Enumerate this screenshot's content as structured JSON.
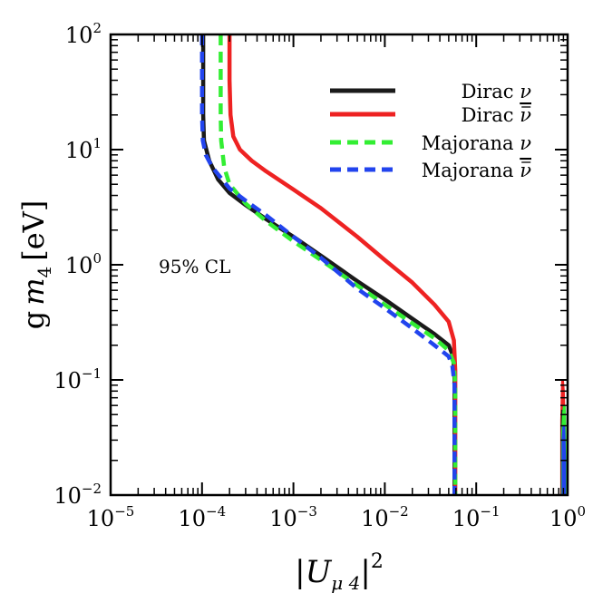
{
  "chart_data": {
    "type": "line",
    "title": "",
    "xlabel": "|U_{μ4}|^2",
    "xlabel_parts": {
      "bar": "|",
      "var": "U",
      "sub": "μ 4",
      "close": "|",
      "sup": "2"
    },
    "ylabel": "g m_4 [eV]",
    "ylabel_parts": {
      "g": "g",
      "var": "m",
      "sub": "4",
      "unit": "[eV]"
    },
    "xscale": "log",
    "yscale": "log",
    "xlim_exp": [
      -5,
      0
    ],
    "ylim_exp": [
      -2,
      2
    ],
    "x_ticks": [
      {
        "base": "10",
        "exp": "−5",
        "e": -5
      },
      {
        "base": "10",
        "exp": "−4",
        "e": -4
      },
      {
        "base": "10",
        "exp": "−3",
        "e": -3
      },
      {
        "base": "10",
        "exp": "−2",
        "e": -2
      },
      {
        "base": "10",
        "exp": "−1",
        "e": -1
      },
      {
        "base": "10",
        "exp": "0",
        "e": 0
      }
    ],
    "y_ticks": [
      {
        "base": "10",
        "exp": "−2",
        "e": -2
      },
      {
        "base": "10",
        "exp": "−1",
        "e": -1
      },
      {
        "base": "10",
        "exp": "0",
        "e": 0
      },
      {
        "base": "10",
        "exp": "1",
        "e": 1
      },
      {
        "base": "10",
        "exp": "2",
        "e": 2
      }
    ],
    "annotation": "95% CL",
    "legend_position": "top-right",
    "series": [
      {
        "name": "Dirac",
        "symbol": "ν",
        "bar": false,
        "color": "#1a1a1a",
        "dash": "solid",
        "points": [
          [
            0.000103,
            100
          ],
          [
            0.000103,
            40
          ],
          [
            0.000103,
            20
          ],
          [
            0.000105,
            12
          ],
          [
            0.00012,
            8
          ],
          [
            0.00015,
            5.5
          ],
          [
            0.0002,
            4.2
          ],
          [
            0.0003,
            3.3
          ],
          [
            0.0005,
            2.5
          ],
          [
            0.001,
            1.75
          ],
          [
            0.002,
            1.2
          ],
          [
            0.005,
            0.72
          ],
          [
            0.01,
            0.5
          ],
          [
            0.02,
            0.34
          ],
          [
            0.035,
            0.25
          ],
          [
            0.05,
            0.2
          ],
          [
            0.056,
            0.16
          ],
          [
            0.058,
            0.1
          ],
          [
            0.058,
            0.01
          ]
        ]
      },
      {
        "name": "Dirac",
        "symbol": "ν",
        "bar": true,
        "color": "#ee2222",
        "dash": "solid",
        "points": [
          [
            0.0002,
            100
          ],
          [
            0.0002,
            40
          ],
          [
            0.000205,
            20
          ],
          [
            0.00022,
            13
          ],
          [
            0.00026,
            10
          ],
          [
            0.00035,
            8
          ],
          [
            0.0005,
            6.5
          ],
          [
            0.001,
            4.5
          ],
          [
            0.002,
            3.1
          ],
          [
            0.005,
            1.75
          ],
          [
            0.01,
            1.1
          ],
          [
            0.02,
            0.7
          ],
          [
            0.035,
            0.45
          ],
          [
            0.05,
            0.32
          ],
          [
            0.057,
            0.22
          ],
          [
            0.059,
            0.12
          ],
          [
            0.059,
            0.01
          ]
        ]
      },
      {
        "name": "Majorana",
        "symbol": "ν",
        "bar": false,
        "color": "#33ee33",
        "dash": "dashed",
        "points": [
          [
            0.00016,
            100
          ],
          [
            0.00016,
            40
          ],
          [
            0.00016,
            20
          ],
          [
            0.000162,
            12
          ],
          [
            0.000175,
            7
          ],
          [
            0.0002,
            5
          ],
          [
            0.0003,
            3.4
          ],
          [
            0.0005,
            2.4
          ],
          [
            0.001,
            1.6
          ],
          [
            0.002,
            1.1
          ],
          [
            0.005,
            0.66
          ],
          [
            0.01,
            0.45
          ],
          [
            0.02,
            0.31
          ],
          [
            0.035,
            0.23
          ],
          [
            0.05,
            0.18
          ],
          [
            0.057,
            0.14
          ],
          [
            0.059,
            0.09
          ],
          [
            0.059,
            0.01
          ]
        ]
      },
      {
        "name": "Majorana",
        "symbol": "ν",
        "bar": true,
        "color": "#2244ee",
        "dash": "dashed",
        "points": [
          [
            0.0001,
            100
          ],
          [
            0.0001,
            40
          ],
          [
            0.0001,
            20
          ],
          [
            0.000102,
            12
          ],
          [
            0.00011,
            9
          ],
          [
            0.00013,
            7
          ],
          [
            0.0002,
            4.6
          ],
          [
            0.0003,
            3.6
          ],
          [
            0.0005,
            2.7
          ],
          [
            0.001,
            1.75
          ],
          [
            0.002,
            1.15
          ],
          [
            0.005,
            0.62
          ],
          [
            0.01,
            0.42
          ],
          [
            0.02,
            0.28
          ],
          [
            0.035,
            0.2
          ],
          [
            0.05,
            0.16
          ],
          [
            0.055,
            0.13
          ],
          [
            0.058,
            0.09
          ],
          [
            0.058,
            0.01
          ]
        ]
      }
    ],
    "right_edge_features": [
      {
        "color": "#ee2222",
        "points": [
          [
            0.86,
            0.01
          ],
          [
            0.86,
            0.045
          ],
          [
            0.87,
            0.07
          ],
          [
            0.88,
            0.1
          ],
          [
            0.9,
            0.08
          ],
          [
            0.92,
            0.04
          ],
          [
            0.93,
            0.01
          ]
        ]
      },
      {
        "color": "#1a1a1a",
        "points": [
          [
            0.87,
            0.01
          ],
          [
            0.87,
            0.04
          ],
          [
            0.88,
            0.055
          ],
          [
            0.9,
            0.045
          ],
          [
            0.91,
            0.01
          ]
        ]
      },
      {
        "color": "#33ee33",
        "points": [
          [
            0.88,
            0.01
          ],
          [
            0.88,
            0.035
          ],
          [
            0.9,
            0.05
          ],
          [
            0.92,
            0.06
          ],
          [
            0.94,
            0.03
          ],
          [
            0.95,
            0.01
          ]
        ]
      },
      {
        "color": "#2244ee",
        "points": [
          [
            0.89,
            0.01
          ],
          [
            0.89,
            0.03
          ],
          [
            0.91,
            0.04
          ],
          [
            0.93,
            0.02
          ],
          [
            0.93,
            0.01
          ]
        ]
      }
    ]
  }
}
